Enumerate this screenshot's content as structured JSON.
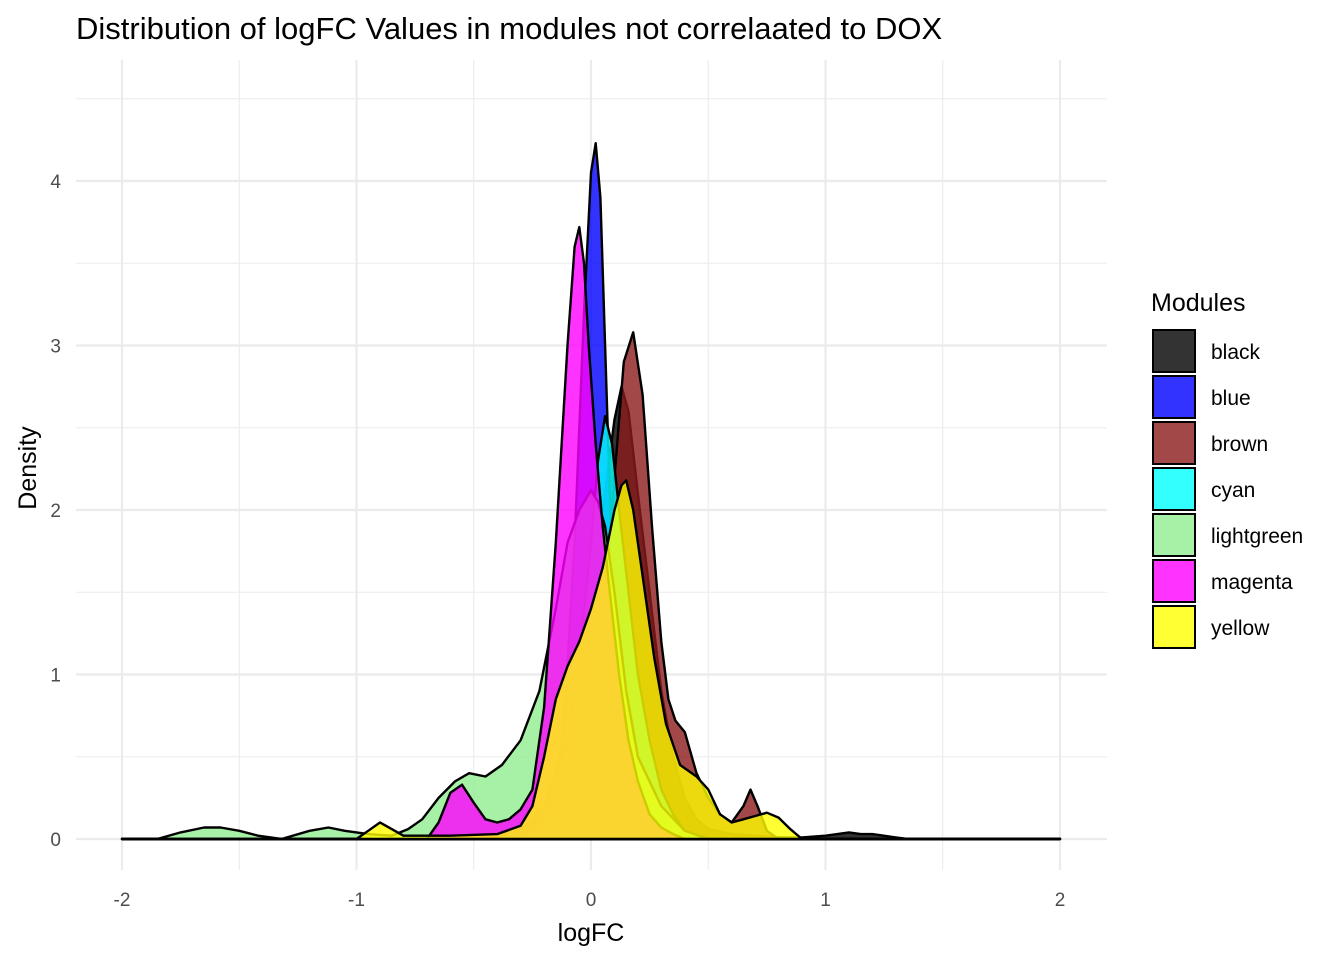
{
  "chart_data": {
    "type": "area",
    "title": "Distribution of logFC Values in modules not correlaated to DOX",
    "xlabel": "logFC",
    "ylabel": "Density",
    "xlim": [
      -2,
      2
    ],
    "ylim": [
      0,
      4.5
    ],
    "x_ticks": [
      -2,
      -1,
      0,
      1,
      2
    ],
    "x_tick_labels": [
      "-2",
      "-1",
      "0",
      "1",
      "2"
    ],
    "y_ticks": [
      0,
      1,
      2,
      3,
      4
    ],
    "y_tick_labels": [
      "0",
      "1",
      "2",
      "3",
      "4"
    ],
    "grid": true,
    "legend": {
      "title": "Modules",
      "position": "right"
    },
    "series": [
      {
        "name": "black",
        "color": "#000000",
        "x": [
          -2.0,
          -0.5,
          -0.3,
          -0.2,
          -0.1,
          0.0,
          0.05,
          0.1,
          0.13,
          0.16,
          0.2,
          0.25,
          0.3,
          0.35,
          0.4,
          0.45,
          0.5,
          0.6,
          0.7,
          0.8,
          0.9,
          1.0,
          1.05,
          1.1,
          1.15,
          1.2,
          1.3,
          1.35,
          2.0
        ],
        "y": [
          0.0,
          0.0,
          0.05,
          0.2,
          0.6,
          1.4,
          2.0,
          2.55,
          2.75,
          2.6,
          2.1,
          1.5,
          0.9,
          0.5,
          0.25,
          0.12,
          0.06,
          0.03,
          0.02,
          0.01,
          0.01,
          0.02,
          0.03,
          0.04,
          0.03,
          0.03,
          0.01,
          0.0,
          0.0
        ]
      },
      {
        "name": "blue",
        "color": "#0000ff",
        "x": [
          -2.0,
          -0.3,
          -0.2,
          -0.12,
          -0.07,
          -0.03,
          0.0,
          0.02,
          0.04,
          0.06,
          0.08,
          0.1,
          0.12,
          0.15,
          0.2,
          0.25,
          0.3,
          0.4,
          2.0
        ],
        "y": [
          0.0,
          0.0,
          0.1,
          0.6,
          1.8,
          3.2,
          4.05,
          4.23,
          3.9,
          3.0,
          2.1,
          1.3,
          0.8,
          0.4,
          0.15,
          0.05,
          0.02,
          0.0,
          0.0
        ]
      },
      {
        "name": "brown",
        "color": "#8b1a1a",
        "x": [
          -2.0,
          -0.2,
          -0.1,
          0.0,
          0.05,
          0.1,
          0.14,
          0.18,
          0.22,
          0.26,
          0.3,
          0.33,
          0.36,
          0.4,
          0.45,
          0.5,
          0.55,
          0.6,
          0.65,
          0.68,
          0.71,
          0.75,
          0.8,
          2.0
        ],
        "y": [
          0.0,
          0.0,
          0.1,
          0.5,
          1.2,
          2.2,
          2.9,
          3.08,
          2.7,
          1.9,
          1.2,
          0.85,
          0.72,
          0.65,
          0.4,
          0.25,
          0.15,
          0.1,
          0.2,
          0.3,
          0.2,
          0.05,
          0.0,
          0.0
        ]
      },
      {
        "name": "cyan",
        "color": "#00ffff",
        "x": [
          -2.0,
          -0.3,
          -0.2,
          -0.1,
          -0.05,
          0.0,
          0.03,
          0.06,
          0.09,
          0.12,
          0.16,
          0.2,
          0.25,
          0.3,
          0.35,
          0.4,
          0.5,
          2.0
        ],
        "y": [
          0.0,
          0.0,
          0.15,
          0.6,
          1.1,
          1.8,
          2.3,
          2.57,
          2.4,
          2.0,
          1.5,
          1.0,
          0.6,
          0.3,
          0.15,
          0.05,
          0.0,
          0.0
        ]
      },
      {
        "name": "lightgreen",
        "color": "#90ee90",
        "x": [
          -2.0,
          -1.85,
          -1.75,
          -1.65,
          -1.58,
          -1.5,
          -1.42,
          -1.32,
          -1.2,
          -1.12,
          -1.05,
          -0.95,
          -0.85,
          -0.78,
          -0.72,
          -0.65,
          -0.58,
          -0.52,
          -0.45,
          -0.38,
          -0.3,
          -0.22,
          -0.15,
          -0.1,
          -0.05,
          0.0,
          0.03,
          0.06,
          0.1,
          0.15,
          0.2,
          0.3,
          0.4,
          0.5,
          2.0
        ],
        "y": [
          0.0,
          0.0,
          0.04,
          0.07,
          0.07,
          0.05,
          0.02,
          0.0,
          0.05,
          0.07,
          0.05,
          0.03,
          0.02,
          0.06,
          0.12,
          0.25,
          0.35,
          0.4,
          0.38,
          0.45,
          0.6,
          0.9,
          1.4,
          1.8,
          2.0,
          2.12,
          2.05,
          1.9,
          1.5,
          0.9,
          0.5,
          0.2,
          0.05,
          0.0,
          0.0
        ]
      },
      {
        "name": "magenta",
        "color": "#ff00ff",
        "x": [
          -2.0,
          -0.7,
          -0.65,
          -0.6,
          -0.55,
          -0.5,
          -0.45,
          -0.4,
          -0.35,
          -0.3,
          -0.25,
          -0.2,
          -0.15,
          -0.1,
          -0.07,
          -0.05,
          -0.03,
          -0.01,
          0.02,
          0.05,
          0.08,
          0.12,
          0.16,
          0.2,
          0.25,
          0.3,
          0.35,
          0.4,
          0.5,
          2.0
        ],
        "y": [
          0.0,
          0.0,
          0.1,
          0.28,
          0.33,
          0.22,
          0.12,
          0.1,
          0.12,
          0.18,
          0.3,
          0.8,
          1.8,
          3.0,
          3.6,
          3.72,
          3.5,
          3.0,
          2.4,
          1.9,
          1.5,
          1.0,
          0.6,
          0.35,
          0.15,
          0.07,
          0.03,
          0.0,
          0.0,
          0.0
        ]
      },
      {
        "name": "yellow",
        "color": "#ffff00",
        "x": [
          -2.0,
          -1.0,
          -0.95,
          -0.9,
          -0.85,
          -0.8,
          -0.6,
          -0.4,
          -0.3,
          -0.25,
          -0.2,
          -0.15,
          -0.1,
          -0.05,
          0.0,
          0.05,
          0.1,
          0.13,
          0.15,
          0.18,
          0.22,
          0.27,
          0.32,
          0.38,
          0.45,
          0.5,
          0.55,
          0.6,
          0.65,
          0.7,
          0.75,
          0.8,
          0.85,
          0.9,
          2.0
        ],
        "y": [
          0.0,
          0.0,
          0.05,
          0.1,
          0.06,
          0.02,
          0.02,
          0.03,
          0.08,
          0.2,
          0.5,
          0.85,
          1.05,
          1.2,
          1.4,
          1.65,
          2.0,
          2.15,
          2.18,
          2.0,
          1.6,
          1.1,
          0.7,
          0.45,
          0.38,
          0.3,
          0.15,
          0.1,
          0.12,
          0.14,
          0.16,
          0.13,
          0.06,
          0.0,
          0.0
        ]
      }
    ]
  }
}
